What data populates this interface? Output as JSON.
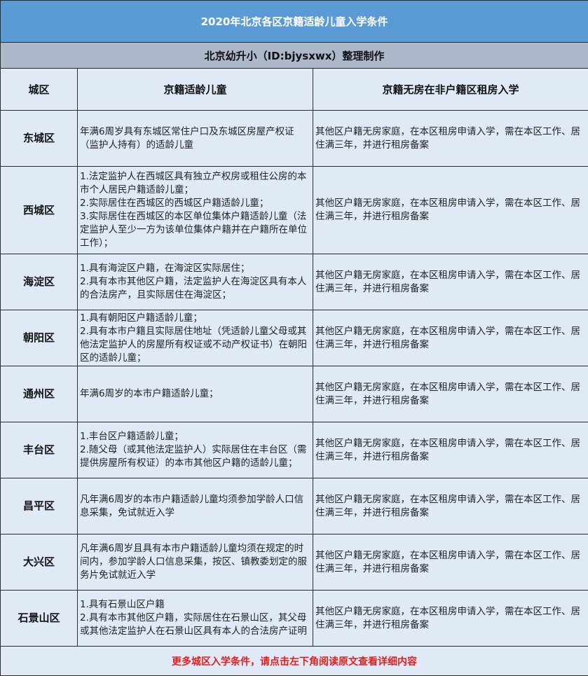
{
  "title": "2020年北京各区京籍适龄儿童入学条件",
  "subtitle": "北京幼升小（ID:bjysxwx）整理制作",
  "headers": [
    "城区",
    "京籍适龄儿童",
    "京籍无房在非户籍区租房入学"
  ],
  "rows": [
    {
      "district": "东城区",
      "cond": [
        "年满6周岁具有东城区常住户口及东城区房屋产权证（监护人持有）的适龄儿童"
      ],
      "rent": "其他区户籍无房家庭，在本区租房申请入学，需在本区工作、居住满三年，并进行租房备案"
    },
    {
      "district": "西城区",
      "cond": [
        "1.法定监护人在西城区具有独立产权房或租住公房的本市个人居民户籍适龄儿童；",
        "2.实际居住在西城区的西城区户籍适龄儿童；",
        "3.实际居住在西城区的本区单位集体户籍适龄儿童（法定监护人至少一方为该单位集体户籍并在户籍所在单位工作）；"
      ],
      "rent": "其他区户籍无房家庭，在本区租房申请入学，需在本区工作、居住满三年，并进行租房备案"
    },
    {
      "district": "海淀区",
      "cond": [
        "1.具有海淀区户籍，在海淀区实际居住；",
        "2.具有本市其他区户籍，法定监护人在海淀区具有本人的合法房产，且实际居住在海淀区；"
      ],
      "rent": "其他区户籍无房家庭，在本区租房申请入学，需在本区工作、居住满三年，并进行租房备案"
    },
    {
      "district": "朝阳区",
      "cond": [
        "1.具有朝阳区户籍适龄儿童；",
        "2.具有本市户籍且实际居住地址（凭适龄儿童父母或其他法定监护人的房屋所有权证或不动产权证书）在朝阳区的适龄儿童；"
      ],
      "rent": "其他区户籍无房家庭，在本区租房申请入学，需在本区工作、居住满三年，并进行租房备案"
    },
    {
      "district": "通州区",
      "cond": [
        "年满6周岁的本市户籍适龄儿童；"
      ],
      "rent": "其他区户籍无房家庭，在本区租房申请入学，需在本区工作、居住满三年，并进行租房备案"
    },
    {
      "district": "丰台区",
      "cond": [
        "1.丰台区户籍适龄儿童；",
        "2.随父母（或其他法定监护人）实际居住在丰台区（需提供房屋所有权证）的本市其他区户籍的适龄儿童；"
      ],
      "rent": "其他区户籍无房家庭，在本区租房申请入学，需在本区工作、居住满三年，并进行租房备案"
    },
    {
      "district": "昌平区",
      "cond": [
        "凡年满6周岁的本市户籍适龄儿童均须参加学龄人口信息采集，免试就近入学"
      ],
      "rent": "其他区户籍无房家庭，在本区租房申请入学，需在本区工作、居住满三年，并进行租房备案"
    },
    {
      "district": "大兴区",
      "cond": [
        "凡年满6周岁且具有本市户籍适龄儿童均须在规定的时间内，参加学龄人口信息采集，按区、镇教委划定的服务片免试就近入学"
      ],
      "rent": "其他区户籍无房家庭，在本区租房申请入学，需在本区工作、居住满三年，并进行租房备案"
    },
    {
      "district": "石景山区",
      "cond": [
        "1.具有石景山区户籍",
        "2.具有本市其他区户籍，实际居住在石景山区，其父母或其他法定监护人在石景山区具有本人的合法房产证明"
      ],
      "rent": "其他区户籍无房家庭，在本区租房申请入学，需在本区工作、居住满三年，并进行租房备案"
    }
  ],
  "footer": "更多城区入学条件，请点击左下角阅读原文查看详细内容",
  "colors": {
    "title_bg": "#5b9bd5",
    "subtitle_bg": "#adb9ca",
    "body_bg": "#dfeaf6",
    "footer_text": "#e02020"
  }
}
